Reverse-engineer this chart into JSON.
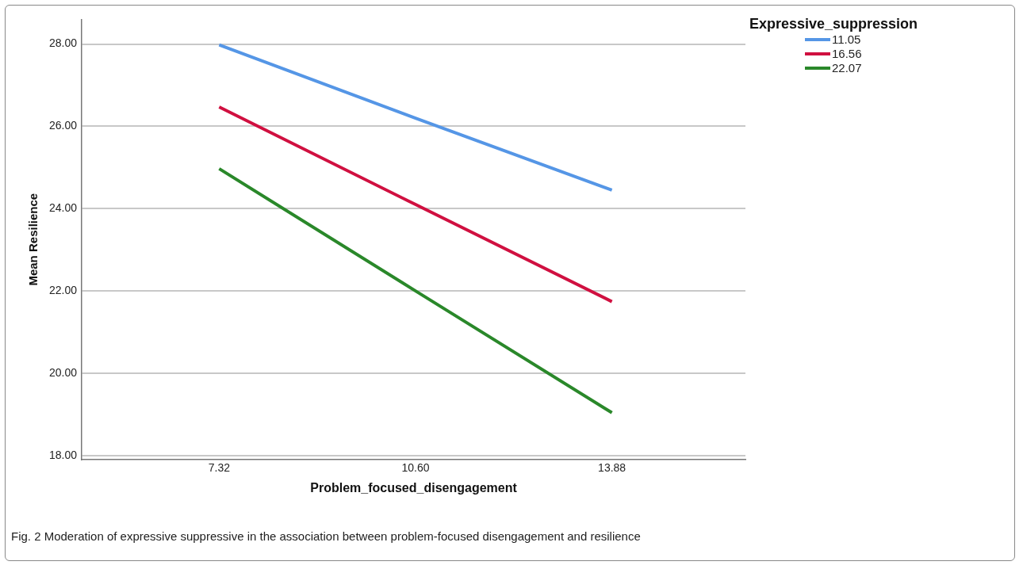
{
  "chart_data": {
    "type": "line",
    "xlabel": "Problem_focused_disengagement",
    "ylabel": "Mean Resilience",
    "legend_title": "Expressive_suppression",
    "categories": [
      "7.32",
      "10.60",
      "13.88"
    ],
    "series": [
      {
        "name": "11.05",
        "color": "#5596e6",
        "values": [
          27.98,
          26.2,
          24.45
        ]
      },
      {
        "name": "16.56",
        "color": "#d01040",
        "values": [
          26.47,
          24.1,
          21.74
        ]
      },
      {
        "name": "22.07",
        "color": "#2a882a",
        "values": [
          24.97,
          22.0,
          19.04
        ]
      }
    ],
    "ylim": [
      17.9,
      28.6
    ],
    "yticks": [
      {
        "value": 18,
        "label": "18.00"
      },
      {
        "value": 20,
        "label": "20.00"
      },
      {
        "value": 22,
        "label": "22.00"
      },
      {
        "value": 24,
        "label": "24.00"
      },
      {
        "value": 26,
        "label": "26.00"
      },
      {
        "value": 28,
        "label": "28.00"
      }
    ],
    "grid": "y",
    "legend": "top right",
    "marker": "none",
    "line_style": "solid",
    "annotations": [
      "Fig. 2  Moderation of expressive suppressive in the association between problem-focused disengagement and resilience"
    ]
  }
}
